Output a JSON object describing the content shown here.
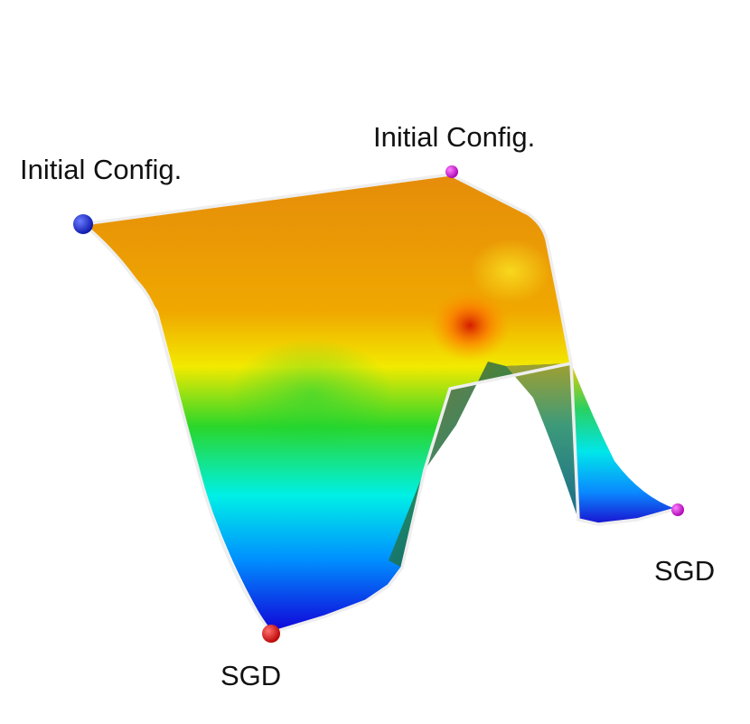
{
  "labels": {
    "start_left": "Initial Config.",
    "start_right": "Initial Config.",
    "end_left": "SGD",
    "end_right": "SGD"
  },
  "markers": {
    "start_left_color": "#1f2fd1",
    "start_right_color": "#d21ad6",
    "end_left_color": "#e01818",
    "end_right_color": "#d21ad6"
  },
  "colormap": [
    "#1a00e0",
    "#0096ff",
    "#00f0f0",
    "#1edc2a",
    "#e8f000",
    "#ff8a00",
    "#e01a00"
  ],
  "edge_color": "#f2f2f2"
}
